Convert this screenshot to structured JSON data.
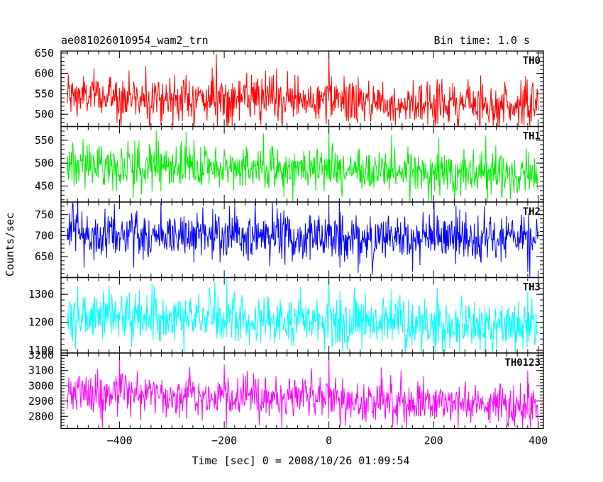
{
  "header": {
    "left_title": "ae081026010954_wam2_trn",
    "right_title": "Bin time: 1.0 s"
  },
  "ylabel": "Counts/sec",
  "xlabel": "Time [sec] 0 = 2008/10/26 01:09:54",
  "chart_data": {
    "type": "line",
    "x_range": [
      -512,
      410
    ],
    "x_ticks": [
      -400,
      -200,
      0,
      200,
      400
    ],
    "x_start": -500,
    "x_end": 400,
    "bin_time": 1.0,
    "panels": [
      {
        "name": "TH0",
        "color": "#ff0000",
        "ylim": [
          470,
          655
        ],
        "yticks": [
          500,
          550,
          600,
          650
        ],
        "mean_start": 545,
        "mean_end": 522,
        "noise": 28,
        "ymin": 470,
        "ymax": 655,
        "features": [
          [
            -215,
            648
          ],
          [
            0,
            655
          ],
          [
            -100,
            612
          ],
          [
            -350,
            618
          ],
          [
            290,
            595
          ]
        ]
      },
      {
        "name": "TH1",
        "color": "#00ee00",
        "ylim": [
          415,
          580
        ],
        "yticks": [
          450,
          500,
          550
        ],
        "mean_start": 498,
        "mean_end": 475,
        "noise": 24,
        "ymin": 415,
        "ymax": 580,
        "features": [
          [
            0,
            582
          ],
          [
            -330,
            572
          ],
          [
            -125,
            565
          ],
          [
            120,
            562
          ],
          [
            300,
            560
          ]
        ]
      },
      {
        "name": "TH2",
        "color": "#0000ff",
        "ylim": [
          600,
          780
        ],
        "yticks": [
          650,
          700,
          750
        ],
        "mean_start": 705,
        "mean_end": 688,
        "noise": 30,
        "ymin": 600,
        "ymax": 780,
        "features": [
          [
            -480,
            780
          ],
          [
            -410,
            775
          ],
          [
            -180,
            770
          ],
          [
            0,
            768
          ],
          [
            250,
            762
          ]
        ]
      },
      {
        "name": "TH3",
        "color": "#00ffff",
        "ylim": [
          1090,
          1360
        ],
        "yticks": [
          1100,
          1200,
          1300
        ],
        "mean_start": 1225,
        "mean_end": 1185,
        "noise": 45,
        "ymin": 1090,
        "ymax": 1360,
        "features": [
          [
            -195,
            1360
          ],
          [
            0,
            1350
          ],
          [
            -480,
            1330
          ],
          [
            120,
            1320
          ],
          [
            380,
            1310
          ]
        ]
      },
      {
        "name": "TH0123",
        "color": "#ff00ff",
        "ylim": [
          2720,
          3215
        ],
        "yticks": [
          2800,
          2900,
          3000,
          3100,
          3200
        ],
        "mean_start": 2960,
        "mean_end": 2870,
        "noise": 70,
        "ymin": 2720,
        "ymax": 3215,
        "features": [
          [
            0,
            3205
          ],
          [
            -400,
            3170
          ],
          [
            -200,
            3140
          ],
          [
            100,
            3120
          ],
          [
            380,
            3100
          ]
        ]
      }
    ]
  }
}
